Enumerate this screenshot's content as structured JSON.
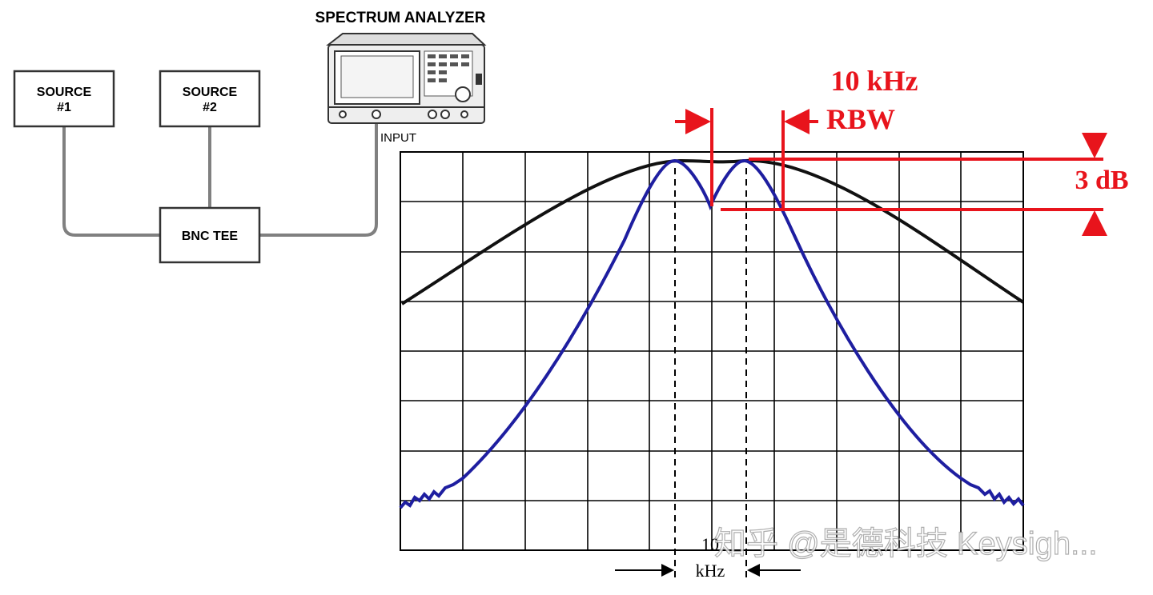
{
  "setup": {
    "analyzer": {
      "title": "SPECTRUM ANALYZER",
      "port": "INPUT"
    },
    "nodes": [
      {
        "label": "SOURCE",
        "sublabel": "#1"
      },
      {
        "label": "SOURCE",
        "sublabel": "#2"
      },
      {
        "label": "BNC TEE"
      }
    ]
  },
  "annotations": {
    "rbw_value": "10 kHz",
    "rbw_label": "RBW",
    "level": "3 dB",
    "spacing_value": "10",
    "spacing_unit": "kHz"
  },
  "watermark": "知乎 @是德科技 Keysigh..."
}
